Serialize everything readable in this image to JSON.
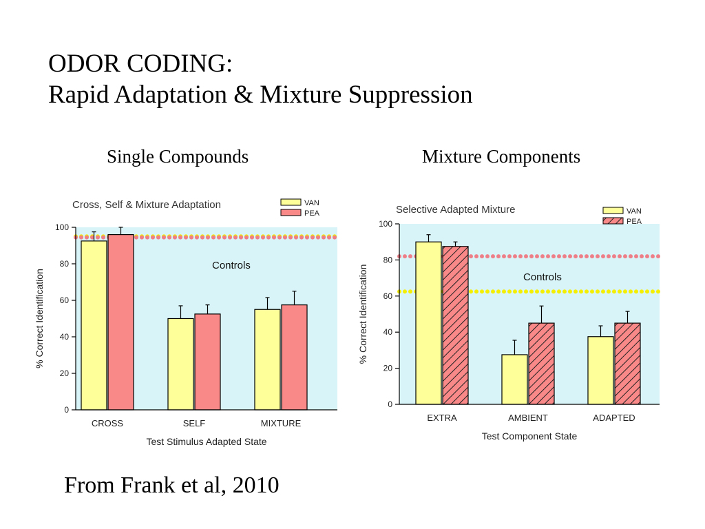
{
  "slide": {
    "title_line1": "ODOR CODING:",
    "title_line2": "Rapid Adaptation & Mixture Suppression",
    "left_heading": "Single Compounds",
    "right_heading": "Mixture Components",
    "citation": "From Frank et al, 2010"
  },
  "colors": {
    "plot_background": "#d8f4f8",
    "van": "#ffff99",
    "pea": "#f98888",
    "controls_yellow": "#f4ee00",
    "controls_pink": "#ee7f88"
  },
  "chart_data": [
    {
      "type": "bar",
      "title": "Cross, Self & Mixture Adaptation",
      "xlabel": "Test Stimulus Adapted State",
      "ylabel": "% Correct Identification",
      "ylim": [
        0,
        100
      ],
      "yticks": [
        "0",
        "20",
        "40",
        "60",
        "80",
        "100"
      ],
      "categories": [
        "CROSS",
        "SELF",
        "MIXTURE"
      ],
      "series": [
        {
          "name": "VAN",
          "fill": "solid",
          "values": [
            92.5,
            50,
            55
          ],
          "errors": [
            5,
            7,
            6.5
          ]
        },
        {
          "name": "PEA",
          "fill": "solid",
          "values": [
            96,
            52.5,
            57.5
          ],
          "errors": [
            4,
            5,
            7.5
          ]
        }
      ],
      "reference_lines": [
        {
          "y": 95,
          "color": "yellow"
        },
        {
          "y": 94.5,
          "color": "pink"
        }
      ],
      "annotation": "Controls",
      "legend_position": "top-right",
      "grid": false
    },
    {
      "type": "bar",
      "title": "Selective Adapted Mixture",
      "xlabel": "Test Component State",
      "ylabel": "% Correct Identification",
      "ylim": [
        0,
        100
      ],
      "yticks": [
        "0",
        "20",
        "40",
        "60",
        "80",
        "100"
      ],
      "categories": [
        "EXTRA",
        "AMBIENT",
        "ADAPTED"
      ],
      "series": [
        {
          "name": "VAN",
          "fill": "solid",
          "values": [
            90,
            27.5,
            37.5
          ],
          "errors": [
            4,
            8,
            6
          ]
        },
        {
          "name": "PEA",
          "fill": "hatched",
          "values": [
            87.5,
            45,
            45
          ],
          "errors": [
            2.5,
            9.5,
            6.5
          ]
        }
      ],
      "reference_lines": [
        {
          "y": 82,
          "color": "pink"
        },
        {
          "y": 62.5,
          "color": "yellow"
        }
      ],
      "annotation": "Controls",
      "legend_position": "top-right",
      "grid": false
    }
  ]
}
